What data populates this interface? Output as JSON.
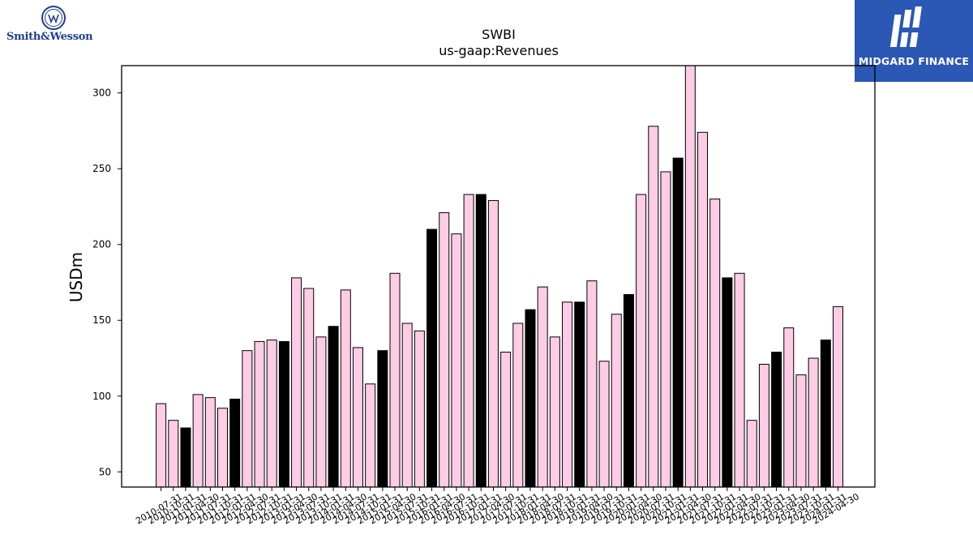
{
  "logos": {
    "left_brand": "Smith&Wesson",
    "right_brand": "MIDGARD FINANCE"
  },
  "chart_data": {
    "type": "bar",
    "title": "SWBI",
    "subtitle": "us-gaap:Revenues",
    "ylabel": "USDm",
    "xlabel": "",
    "ylim": [
      40,
      318
    ],
    "yticks": [
      50,
      100,
      150,
      200,
      250,
      300
    ],
    "grid": false,
    "colors": {
      "pink": "#ffcce6",
      "black": "#000000"
    },
    "categories": [
      "2010-07-31",
      "2010-10-31",
      "2011-01-31",
      "2011-04-30",
      "2011-07-31",
      "2011-10-31",
      "2012-01-31",
      "2012-04-30",
      "2012-07-31",
      "2012-10-31",
      "2013-01-31",
      "2013-04-30",
      "2013-07-31",
      "2013-10-31",
      "2014-01-31",
      "2014-04-30",
      "2014-07-31",
      "2014-10-31",
      "2015-01-31",
      "2015-04-30",
      "2015-07-31",
      "2015-10-31",
      "2016-01-31",
      "2016-04-30",
      "2016-07-31",
      "2016-10-31",
      "2017-01-31",
      "2017-04-30",
      "2017-07-31",
      "2017-10-31",
      "2018-01-31",
      "2018-04-30",
      "2018-07-31",
      "2018-10-31",
      "2019-01-31",
      "2019-04-30",
      "2019-07-31",
      "2019-10-31",
      "2020-01-31",
      "2020-04-30",
      "2020-07-31",
      "2020-10-31",
      "2021-01-31",
      "2021-04-30",
      "2021-07-31",
      "2021-10-31",
      "2022-01-31",
      "2022-04-30",
      "2022-07-31",
      "2022-10-31",
      "2023-01-31",
      "2023-04-30",
      "2023-07-31",
      "2023-10-31",
      "2024-01-31",
      "2024-04-30"
    ],
    "values": [
      95,
      84,
      79,
      101,
      99,
      92,
      98,
      130,
      136,
      137,
      136,
      178,
      171,
      139,
      146,
      170,
      132,
      108,
      130,
      181,
      148,
      143,
      210,
      221,
      207,
      233,
      233,
      229,
      129,
      148,
      157,
      172,
      139,
      162,
      162,
      176,
      123,
      154,
      167,
      233,
      278,
      248,
      257,
      320,
      274,
      230,
      178,
      181,
      84,
      121,
      129,
      145,
      114,
      125,
      137,
      159
    ],
    "highlight": [
      false,
      false,
      true,
      false,
      false,
      false,
      true,
      false,
      false,
      false,
      true,
      false,
      false,
      false,
      true,
      false,
      false,
      false,
      true,
      false,
      false,
      false,
      true,
      false,
      false,
      false,
      true,
      false,
      false,
      false,
      true,
      false,
      false,
      false,
      true,
      false,
      false,
      false,
      true,
      false,
      false,
      false,
      true,
      false,
      false,
      false,
      true,
      false,
      false,
      false,
      true,
      false,
      false,
      false,
      true,
      false
    ]
  }
}
